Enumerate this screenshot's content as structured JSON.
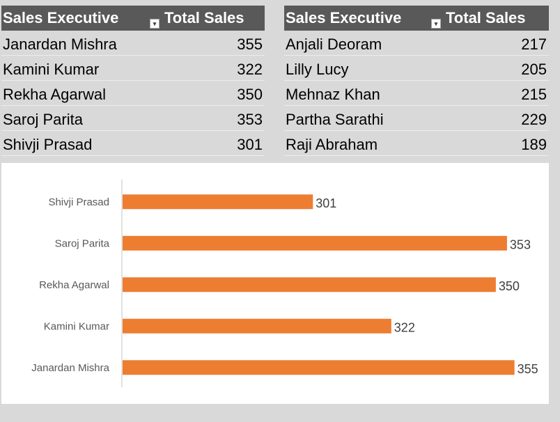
{
  "pivot_left": {
    "headers": {
      "col1": "Sales Executive",
      "col2": "Total Sales"
    },
    "rows": [
      {
        "name": "Janardan Mishra",
        "value": "355"
      },
      {
        "name": "Kamini Kumar",
        "value": "322"
      },
      {
        "name": "Rekha Agarwal",
        "value": "350"
      },
      {
        "name": "Saroj Parita",
        "value": "353"
      },
      {
        "name": "Shivji Prasad",
        "value": "301"
      }
    ]
  },
  "pivot_right": {
    "headers": {
      "col1": "Sales Executive",
      "col2": "Total Sales"
    },
    "rows": [
      {
        "name": "Anjali Deoram",
        "value": "217"
      },
      {
        "name": "Lilly Lucy",
        "value": "205"
      },
      {
        "name": "Mehnaz Khan",
        "value": "215"
      },
      {
        "name": "Partha Sarathi",
        "value": "229"
      },
      {
        "name": "Raji Abraham",
        "value": "189"
      }
    ]
  },
  "filter_icon": "filter-dropdown-icon",
  "colors": {
    "bar": "#ed7d31",
    "header_bg": "#595959",
    "background": "#d9d9d9"
  },
  "chart_data": {
    "type": "bar",
    "orientation": "horizontal",
    "categories": [
      "Shivji Prasad",
      "Saroj Parita",
      "Rekha Agarwal",
      "Kamini Kumar",
      "Janardan Mishra"
    ],
    "values": [
      301,
      353,
      350,
      322,
      355
    ],
    "data_labels": true,
    "grid": false,
    "xlim": [
      250,
      356
    ]
  }
}
